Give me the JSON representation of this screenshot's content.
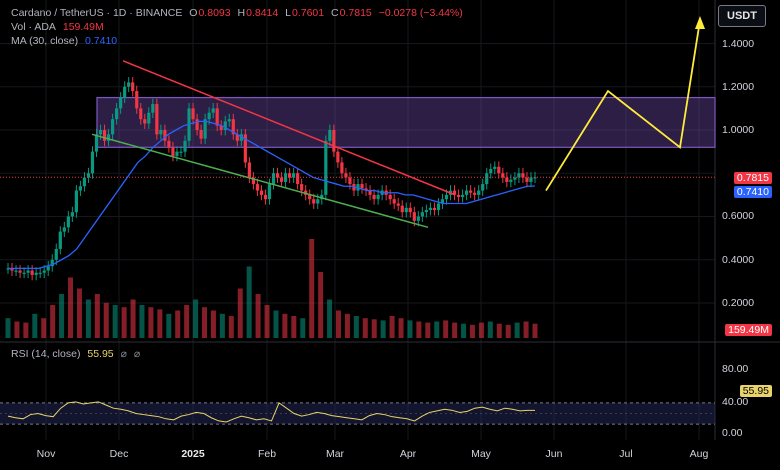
{
  "legend": {
    "symbol": "Cardano / TetherUS · 1D · BINANCE",
    "open_label": "O",
    "open": "0.8093",
    "high_label": "H",
    "high": "0.8414",
    "low_label": "L",
    "low": "0.7601",
    "close_label": "C",
    "close": "0.7815",
    "change": "−0.0278 (−3.44%)",
    "vol_label": "Vol · ADA",
    "vol": "159.49M",
    "ma_label": "MA (30, close)",
    "ma": "0.7410",
    "rsi_label": "RSI (14, close)",
    "rsi": "55.95",
    "hidden_glyph": "⌀"
  },
  "currency_button": "USDT",
  "price_axis": [
    "1.4000",
    "1.2000",
    "1.0000",
    "0.6000",
    "0.4000",
    "0.2000"
  ],
  "price_labels": {
    "close": "0.7815",
    "ma": "0.7410",
    "volume": "159.49M",
    "rsi": "55.95"
  },
  "rsi_axis": [
    "80.00",
    "40.00",
    "0.00"
  ],
  "time_axis": [
    "Nov",
    "Dec",
    "2025",
    "Feb",
    "Mar",
    "Apr",
    "May",
    "Jun",
    "Jul",
    "Aug"
  ],
  "colors": {
    "up": "#089981",
    "down": "#f23645",
    "ma": "#2962ff",
    "zone": "#7e57c2",
    "projection": "#ffeb3b",
    "rsi": "#e8d46a"
  },
  "chart_data": {
    "type": "candlestick",
    "interval": "1D",
    "price_range": [
      0,
      1.5
    ],
    "close_series": [
      0.36,
      0.35,
      0.35,
      0.34,
      0.34,
      0.35,
      0.33,
      0.34,
      0.34,
      0.35,
      0.37,
      0.4,
      0.45,
      0.53,
      0.55,
      0.6,
      0.62,
      0.72,
      0.74,
      0.78,
      0.8,
      0.9,
      0.98,
      1.0,
      0.95,
      0.98,
      1.05,
      1.1,
      1.15,
      1.2,
      1.22,
      1.18,
      1.1,
      1.05,
      1.03,
      1.08,
      1.12,
      0.98,
      1.0,
      0.95,
      0.92,
      0.88,
      0.9,
      0.9,
      0.95,
      1.1,
      1.05,
      1.0,
      0.96,
      1.05,
      1.08,
      1.1,
      1.02,
      1.0,
      1.04,
      1.05,
      0.98,
      0.95,
      0.98,
      0.85,
      0.78,
      0.75,
      0.72,
      0.7,
      0.68,
      0.75,
      0.8,
      0.78,
      0.76,
      0.8,
      0.78,
      0.8,
      0.75,
      0.72,
      0.7,
      0.68,
      0.66,
      0.68,
      0.7,
      0.95,
      1.0,
      0.9,
      0.85,
      0.8,
      0.78,
      0.75,
      0.72,
      0.75,
      0.73,
      0.72,
      0.7,
      0.68,
      0.7,
      0.72,
      0.7,
      0.68,
      0.66,
      0.65,
      0.62,
      0.64,
      0.62,
      0.58,
      0.6,
      0.62,
      0.63,
      0.64,
      0.63,
      0.66,
      0.68,
      0.7,
      0.72,
      0.7,
      0.69,
      0.7,
      0.72,
      0.71,
      0.7,
      0.72,
      0.75,
      0.8,
      0.82,
      0.83,
      0.8,
      0.78,
      0.76,
      0.77,
      0.78,
      0.8,
      0.78,
      0.76,
      0.78,
      0.7815
    ],
    "ma_30_series": [
      0.36,
      0.36,
      0.36,
      0.36,
      0.36,
      0.37,
      0.38,
      0.4,
      0.42,
      0.45,
      0.5,
      0.55,
      0.6,
      0.65,
      0.7,
      0.75,
      0.8,
      0.85,
      0.88,
      0.92,
      0.95,
      0.98,
      1.0,
      1.02,
      1.03,
      1.04,
      1.04,
      1.03,
      1.02,
      1.0,
      0.98,
      0.96,
      0.94,
      0.92,
      0.9,
      0.88,
      0.86,
      0.84,
      0.82,
      0.8,
      0.78,
      0.77,
      0.76,
      0.75,
      0.74,
      0.74,
      0.73,
      0.72,
      0.72,
      0.71,
      0.71,
      0.71,
      0.7,
      0.7,
      0.69,
      0.68,
      0.67,
      0.66,
      0.66,
      0.66,
      0.66,
      0.67,
      0.68,
      0.69,
      0.7,
      0.71,
      0.72,
      0.73,
      0.74,
      0.741
    ],
    "volume_series": [
      0.18,
      0.15,
      0.14,
      0.22,
      0.18,
      0.3,
      0.4,
      0.55,
      0.45,
      0.35,
      0.4,
      0.32,
      0.3,
      0.28,
      0.35,
      0.3,
      0.28,
      0.26,
      0.22,
      0.25,
      0.3,
      0.35,
      0.28,
      0.25,
      0.22,
      0.2,
      0.45,
      0.65,
      0.4,
      0.3,
      0.25,
      0.22,
      0.2,
      0.18,
      0.9,
      0.6,
      0.35,
      0.25,
      0.22,
      0.2,
      0.18,
      0.17,
      0.16,
      0.2,
      0.18,
      0.16,
      0.15,
      0.14,
      0.15,
      0.16,
      0.14,
      0.13,
      0.12,
      0.14,
      0.15,
      0.13,
      0.12,
      0.14,
      0.15,
      0.13
    ],
    "volume_last": "159.49M",
    "rsi_range": [
      0,
      100
    ],
    "rsi_levels": [
      70,
      30
    ],
    "rsi_series": [
      45,
      42,
      40,
      48,
      50,
      46,
      44,
      60,
      70,
      72,
      68,
      70,
      72,
      66,
      60,
      58,
      55,
      50,
      48,
      46,
      44,
      40,
      38,
      45,
      48,
      52,
      50,
      42,
      36,
      34,
      40,
      45,
      42,
      38,
      40,
      36,
      70,
      60,
      50,
      45,
      48,
      52,
      50,
      46,
      44,
      42,
      40,
      38,
      46,
      50,
      48,
      44,
      42,
      40,
      36,
      45,
      52,
      55,
      58,
      56,
      52,
      54,
      60,
      62,
      58,
      55,
      60,
      58,
      55,
      56,
      55.95
    ],
    "resistance_zone": [
      0.92,
      1.15
    ],
    "falling_resistance_line": [
      [
        0.01,
        1.32
      ],
      [
        1.0,
        0.7
      ]
    ],
    "falling_support_line": [
      [
        0.0,
        0.98
      ],
      [
        1.0,
        0.55
      ]
    ],
    "projection_path": [
      0.72,
      1.18,
      0.92,
      1.48
    ],
    "last_close": 0.7815,
    "last_ma": 0.741,
    "time_labels": [
      "Nov",
      "Dec",
      "2025",
      "Feb",
      "Mar",
      "Apr",
      "May",
      "Jun",
      "Jul",
      "Aug"
    ]
  }
}
